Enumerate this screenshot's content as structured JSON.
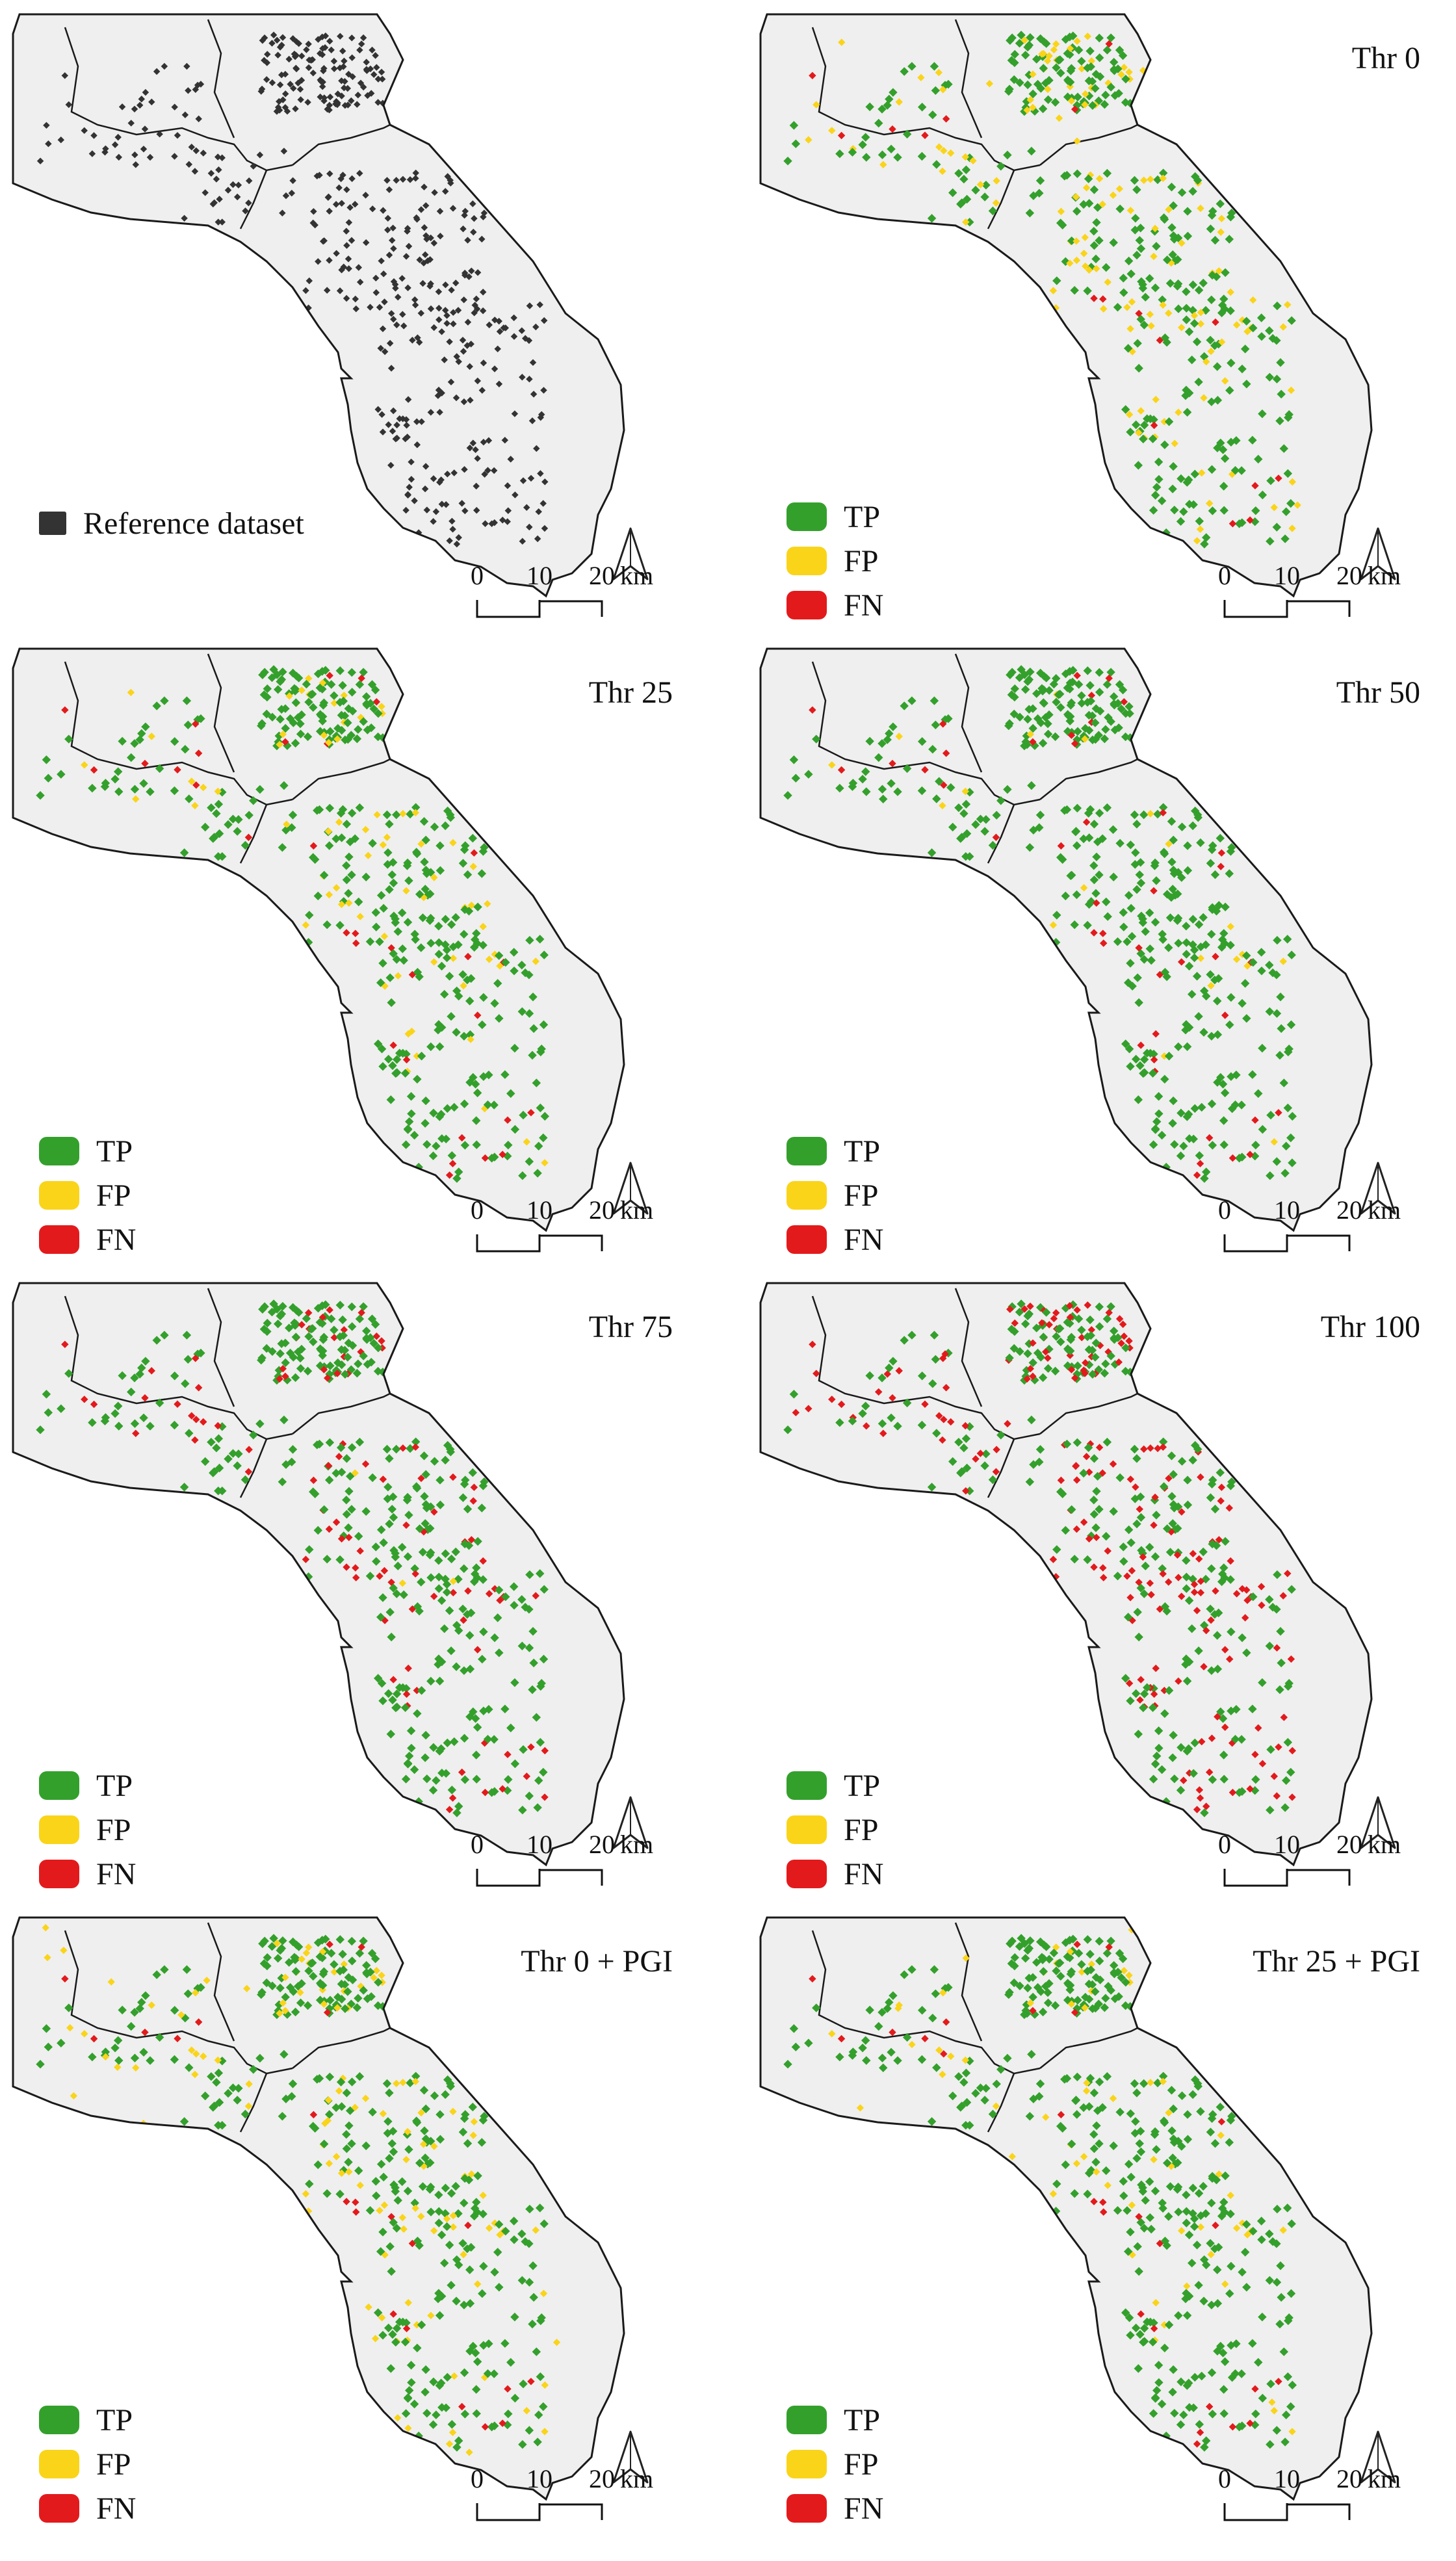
{
  "colors": {
    "land": "#efefef",
    "coast": "#1a1a1a",
    "reference": "#333333",
    "TP": "#34a02c",
    "FP": "#fad419",
    "FN": "#e31a1c"
  },
  "legend_items": [
    {
      "key": "TP",
      "label": "TP"
    },
    {
      "key": "FP",
      "label": "FP"
    },
    {
      "key": "FN",
      "label": "FN"
    }
  ],
  "reference_label": "Reference dataset",
  "scale": {
    "ticks": [
      "0",
      "10",
      "20"
    ],
    "unit": "km"
  },
  "north_icon": "north-arrow-icon",
  "panels": [
    {
      "id": "reference",
      "title": "",
      "legend": "reference"
    },
    {
      "id": "thr0",
      "title": "Thr 0",
      "legend": "classes",
      "mix": {
        "TP": 0.72,
        "FP": 0.25,
        "FN": 0.03
      }
    },
    {
      "id": "thr25",
      "title": "Thr 25",
      "legend": "classes",
      "mix": {
        "TP": 0.82,
        "FP": 0.12,
        "FN": 0.06
      }
    },
    {
      "id": "thr50",
      "title": "Thr 50",
      "legend": "classes",
      "mix": {
        "TP": 0.88,
        "FP": 0.03,
        "FN": 0.09
      }
    },
    {
      "id": "thr75",
      "title": "Thr 75",
      "legend": "classes",
      "mix": {
        "TP": 0.8,
        "FP": 0.01,
        "FN": 0.19
      }
    },
    {
      "id": "thr100",
      "title": "Thr 100",
      "legend": "classes",
      "mix": {
        "TP": 0.6,
        "FP": 0.0,
        "FN": 0.4
      }
    },
    {
      "id": "thr0pgi",
      "title": "Thr 0 + PGI",
      "legend": "classes",
      "mix": {
        "TP": 0.74,
        "FP": 0.22,
        "FN": 0.04
      }
    },
    {
      "id": "thr25pgi",
      "title": "Thr 25 + PGI",
      "legend": "classes",
      "mix": {
        "TP": 0.84,
        "FP": 0.11,
        "FN": 0.05
      }
    }
  ]
}
